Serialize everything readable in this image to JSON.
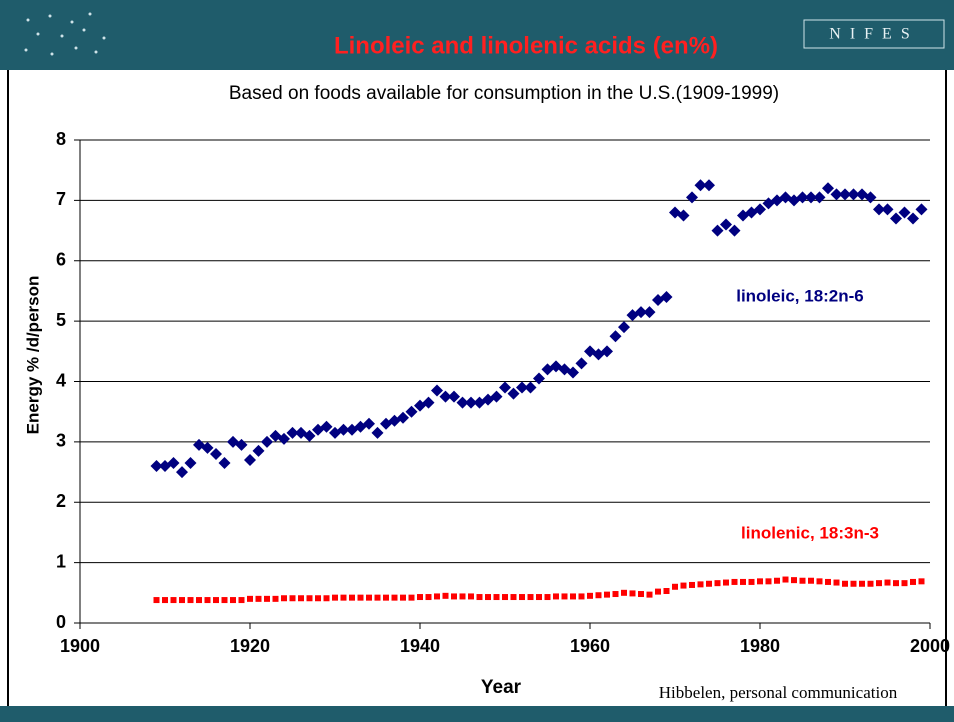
{
  "logo": "NIFES",
  "chart_data": {
    "type": "scatter",
    "title": "Linoleic and linolenic acids (en%)",
    "subtitle": "Based on foods available for consumption in the U.S.(1909-1999)",
    "xlabel": "Year",
    "ylabel": "Energy  % /d/person",
    "source": "Hibbelen, personal communication",
    "annotations": [
      "linoleic, 18:2n-6",
      "linolenic, 18:3n-3"
    ],
    "xlim": [
      1900,
      2000
    ],
    "xticks": [
      1900,
      1920,
      1940,
      1960,
      1980,
      2000
    ],
    "ylim": [
      0,
      8
    ],
    "yticks": [
      0,
      1,
      2,
      3,
      4,
      5,
      6,
      7,
      8
    ],
    "grid": true,
    "x": [
      1909,
      1910,
      1911,
      1912,
      1913,
      1914,
      1915,
      1916,
      1917,
      1918,
      1919,
      1920,
      1921,
      1922,
      1923,
      1924,
      1925,
      1926,
      1927,
      1928,
      1929,
      1930,
      1931,
      1932,
      1933,
      1934,
      1935,
      1936,
      1937,
      1938,
      1939,
      1940,
      1941,
      1942,
      1943,
      1944,
      1945,
      1946,
      1947,
      1948,
      1949,
      1950,
      1951,
      1952,
      1953,
      1954,
      1955,
      1956,
      1957,
      1958,
      1959,
      1960,
      1961,
      1962,
      1963,
      1964,
      1965,
      1966,
      1967,
      1968,
      1969,
      1970,
      1971,
      1972,
      1973,
      1974,
      1975,
      1976,
      1977,
      1978,
      1979,
      1980,
      1981,
      1982,
      1983,
      1984,
      1985,
      1986,
      1987,
      1988,
      1989,
      1990,
      1991,
      1992,
      1993,
      1994,
      1995,
      1996,
      1997,
      1998,
      1999
    ],
    "series": [
      {
        "name": "linoleic, 18:2n-6",
        "color": "#000080",
        "marker": "diamond",
        "values": [
          2.6,
          2.6,
          2.65,
          2.5,
          2.65,
          2.95,
          2.9,
          2.8,
          2.65,
          3.0,
          2.95,
          2.7,
          2.85,
          3.0,
          3.1,
          3.05,
          3.15,
          3.15,
          3.1,
          3.2,
          3.25,
          3.15,
          3.2,
          3.2,
          3.25,
          3.3,
          3.15,
          3.3,
          3.35,
          3.4,
          3.5,
          3.6,
          3.65,
          3.85,
          3.75,
          3.75,
          3.65,
          3.65,
          3.65,
          3.7,
          3.75,
          3.9,
          3.8,
          3.9,
          3.9,
          4.05,
          4.2,
          4.25,
          4.2,
          4.15,
          4.3,
          4.5,
          4.45,
          4.5,
          4.75,
          4.9,
          5.1,
          5.15,
          5.15,
          5.35,
          5.4,
          6.8,
          6.75,
          7.05,
          7.25,
          7.25,
          6.5,
          6.6,
          6.5,
          6.75,
          6.8,
          6.85,
          6.95,
          7.0,
          7.05,
          7.0,
          7.05,
          7.05,
          7.05,
          7.2,
          7.1,
          7.1,
          7.1,
          7.1,
          7.05,
          6.85,
          6.85,
          6.7,
          6.8,
          6.7,
          6.85
        ]
      },
      {
        "name": "linolenic, 18:3n-3",
        "color": "#ff0000",
        "marker": "square",
        "values": [
          0.38,
          0.38,
          0.38,
          0.38,
          0.38,
          0.38,
          0.38,
          0.38,
          0.38,
          0.38,
          0.38,
          0.4,
          0.4,
          0.4,
          0.4,
          0.41,
          0.41,
          0.41,
          0.41,
          0.41,
          0.41,
          0.42,
          0.42,
          0.42,
          0.42,
          0.42,
          0.42,
          0.42,
          0.42,
          0.42,
          0.42,
          0.43,
          0.43,
          0.44,
          0.45,
          0.44,
          0.44,
          0.44,
          0.43,
          0.43,
          0.43,
          0.43,
          0.43,
          0.43,
          0.43,
          0.43,
          0.43,
          0.44,
          0.44,
          0.44,
          0.44,
          0.45,
          0.46,
          0.47,
          0.48,
          0.5,
          0.49,
          0.48,
          0.47,
          0.52,
          0.53,
          0.6,
          0.62,
          0.63,
          0.64,
          0.65,
          0.66,
          0.67,
          0.68,
          0.68,
          0.68,
          0.69,
          0.69,
          0.7,
          0.72,
          0.71,
          0.7,
          0.7,
          0.69,
          0.68,
          0.67,
          0.65,
          0.65,
          0.65,
          0.65,
          0.66,
          0.67,
          0.66,
          0.66,
          0.68,
          0.69
        ]
      }
    ]
  }
}
